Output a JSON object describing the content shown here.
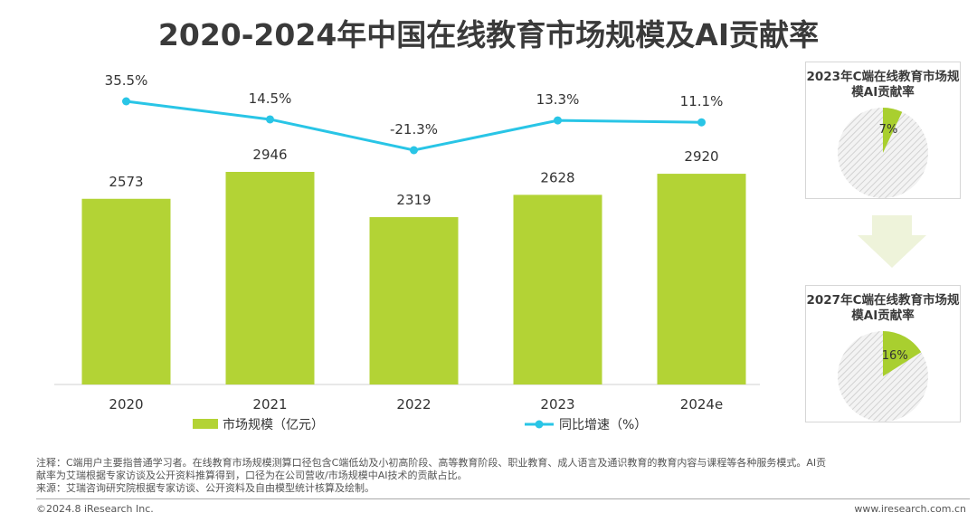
{
  "title": "2020-2024年中国在线教育市场规模及AI贡献率",
  "colors": {
    "bar": "#b3d335",
    "line": "#29c5e6",
    "pie_rest": "#dddddd",
    "pie_slice": "#a9cf2f",
    "arrow": "#eef3da"
  },
  "chart_data": [
    {
      "type": "bar",
      "categories": [
        "2020",
        "2021",
        "2022",
        "2023",
        "2024e"
      ],
      "series": [
        {
          "name": "市场规模（亿元）",
          "type": "bar",
          "values": [
            2573,
            2946,
            2319,
            2628,
            2920
          ]
        },
        {
          "name": "同比增速（%）",
          "type": "line",
          "values": [
            35.5,
            14.5,
            -21.3,
            13.3,
            11.1
          ]
        }
      ],
      "labels": {
        "bar": [
          "2573",
          "2946",
          "2319",
          "2628",
          "2920"
        ],
        "line": [
          "35.5%",
          "14.5%",
          "-21.3%",
          "13.3%",
          "11.1%"
        ]
      },
      "legend": [
        "市场规模（亿元）",
        "同比增速（%）"
      ],
      "legend_position": "bottom",
      "grid": false
    },
    {
      "type": "pie",
      "title": "2023年C端在线教育市场规模AI贡献率",
      "values": [
        7,
        93
      ],
      "label": "7%"
    },
    {
      "type": "pie",
      "title": "2027年C端在线教育市场规模AI贡献率",
      "values": [
        16,
        84
      ],
      "label": "16%"
    }
  ],
  "notes": {
    "line1": "注释：C端用户主要指普通学习者。在线教育市场规模测算口径包含C端低幼及小初高阶段、高等教育阶段、职业教育、成人语言及通识教育的教育内容与课程等各种服务模式。AI贡",
    "line2": "献率为艾瑞根据专家访谈及公开资料推算得到，口径为在公司营收/市场规模中AI技术的贡献占比。",
    "line3": "来源：艾瑞咨询研究院根据专家访谈、公开资料及自由模型统计核算及绘制。"
  },
  "footer": {
    "copyright": "©2024.8 iResearch Inc.",
    "website": "www.iresearch.com.cn"
  }
}
